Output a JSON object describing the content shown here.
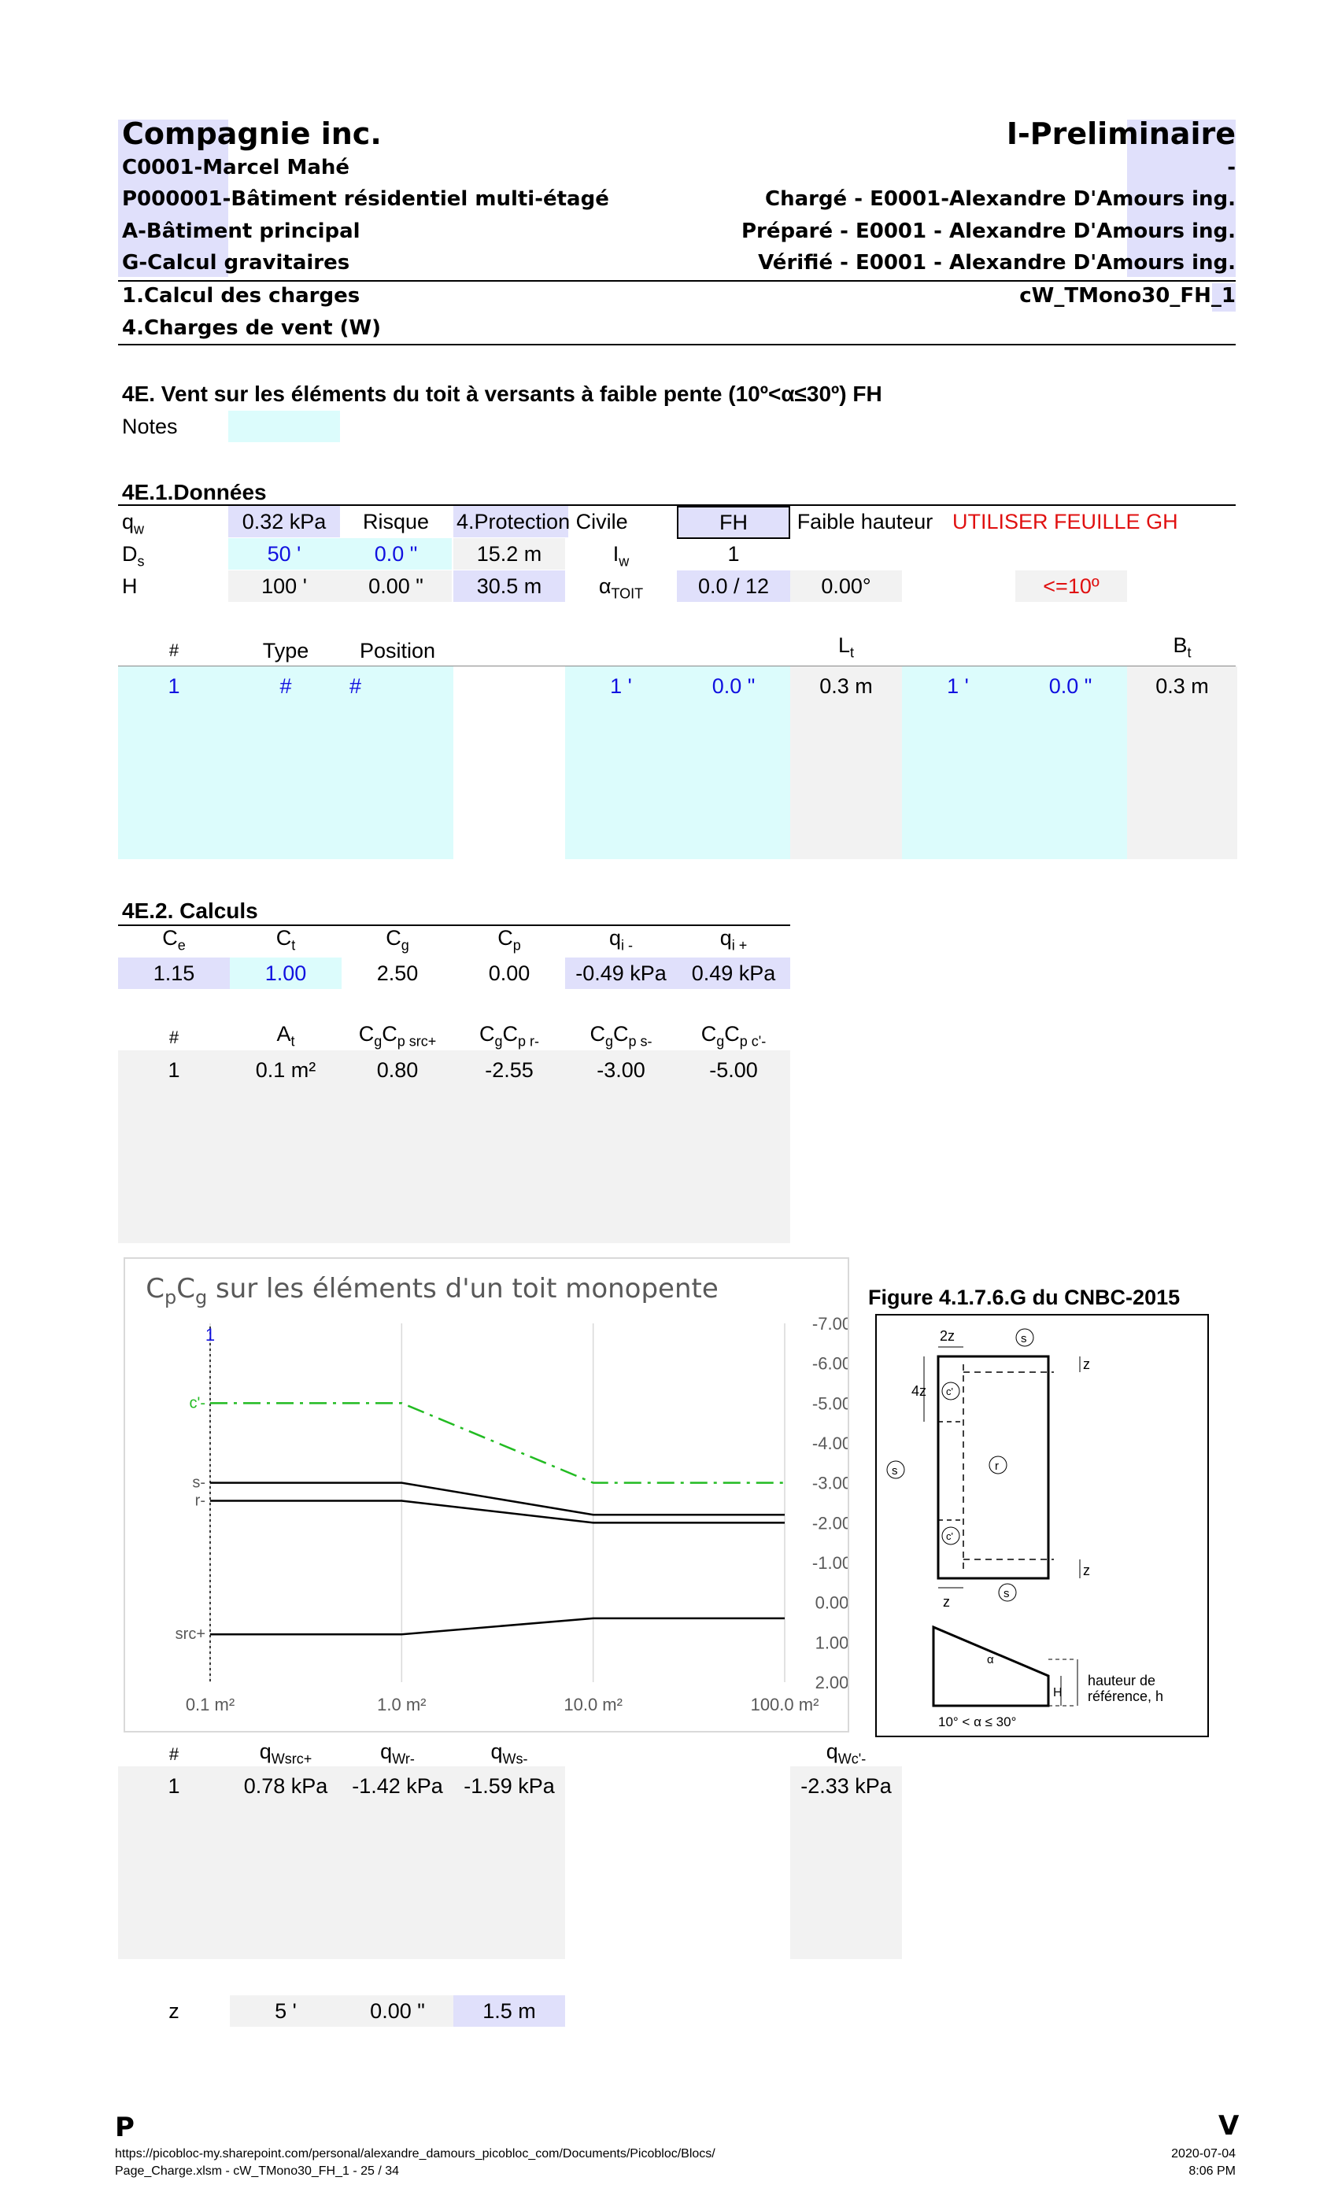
{
  "header": {
    "company": "Compagnie inc.",
    "status": "I-Preliminaire",
    "client": "C0001-Marcel Mahé",
    "dash": "-",
    "project": "P000001-Bâtiment résidentiel multi-étagé",
    "charge": "Chargé - E0001-Alexandre D'Amours ing.",
    "building": "A-Bâtiment principal",
    "prepare": "Préparé - E0001 - Alexandre D'Amours ing.",
    "calc": "G-Calcul gravitaires",
    "verifie": "Vérifié - E0001 - Alexandre D'Amours ing.",
    "section1": "1.Calcul des charges",
    "sheet": "cW_TMono30_FH_1",
    "section4": "4.Charges de vent (W)"
  },
  "title": "4E. Vent sur les éléments du toit à versants à faible pente (10º<α≤30º) FH",
  "notes_label": "Notes",
  "donnees": {
    "heading": "4E.1.Données",
    "qw": "0.32 kPa",
    "risque": "Risque",
    "protection": "4.Protection Civile",
    "fh": "FH",
    "faible": "Faible hauteur",
    "utiliser": "UTILISER FEUILLE GH",
    "ds_ft": "50 '",
    "ds_in": "0.0 \"",
    "ds_m": "15.2 m",
    "iw": "1",
    "h_ft": "100 '",
    "h_in": "0.00 \"",
    "h_m": "30.5 m",
    "pente": "0.0 / 12",
    "angle": "0.00°",
    "cond": "<=10º"
  },
  "table1": {
    "h_num": "#",
    "h_type": "Type",
    "h_pos": "Position",
    "row": {
      "num": "1",
      "type": "#",
      "pos": "#",
      "lt_ft": "1 '",
      "lt_in": "0.0 \"",
      "lt_m": "0.3 m",
      "bt_ft": "1 '",
      "bt_in": "0.0 \"",
      "bt_m": "0.3 m"
    }
  },
  "calculs": {
    "heading": "4E.2. Calculs",
    "ce": "1.15",
    "ct": "1.00",
    "cg": "2.50",
    "cp": "0.00",
    "qi_minus": "-0.49 kPa",
    "qi_plus": "0.49 kPa"
  },
  "table2": {
    "h_num": "#",
    "row": {
      "num": "1",
      "at": "0.1 m²",
      "src": "0.80",
      "r": "-2.55",
      "s": "-3.00",
      "c": "-5.00"
    }
  },
  "chart": {
    "title_sub_p": "p",
    "title_sub_g": "g",
    "title_rest": " sur les éléments d'un toit monopente",
    "marker": "1",
    "labels": {
      "c": "c'-",
      "s": "s-",
      "r": "r-",
      "src": "src+"
    }
  },
  "chart_data": {
    "type": "line",
    "title": "CpCg sur les éléments d'un toit monopente",
    "x_scale": "log",
    "x_ticks": [
      "0.1 m²",
      "1.0 m²",
      "10.0 m²",
      "100.0 m²"
    ],
    "y_ticks": [
      "-7.00",
      "-6.00",
      "-5.00",
      "-4.00",
      "-3.00",
      "-2.00",
      "-1.00",
      "0.00",
      "1.00",
      "2.00"
    ],
    "ylim": [
      -7,
      2
    ],
    "y_inverted": true,
    "x": [
      0.1,
      1,
      10,
      100
    ],
    "series": [
      {
        "name": "c'-",
        "values": [
          -5.0,
          -5.0,
          -3.0,
          -3.0
        ],
        "color": "#22bb22",
        "dash": "dashdot"
      },
      {
        "name": "s-",
        "values": [
          -3.0,
          -3.0,
          -2.2,
          -2.2
        ],
        "color": "#000000"
      },
      {
        "name": "r-",
        "values": [
          -2.55,
          -2.55,
          -2.0,
          -2.0
        ],
        "color": "#000000"
      },
      {
        "name": "src+",
        "values": [
          0.8,
          0.8,
          0.4,
          0.4
        ],
        "color": "#000000"
      }
    ],
    "grid": true
  },
  "figure": {
    "title": "Figure 4.1.7.6.G du CNBC-2015",
    "l2z": "2z",
    "l4z": "4z",
    "z": "z",
    "s": "s",
    "c": "c'",
    "r": "r",
    "alpha": "α",
    "H": "H",
    "ref1": "hauteur de",
    "ref2": "référence, h",
    "range": "10° < α ≤ 30°"
  },
  "table3": {
    "h_num": "#",
    "row": {
      "num": "1",
      "src": "0.78 kPa",
      "r": "-1.42 kPa",
      "s": "-1.59 kPa",
      "c": "-2.33 kPa"
    }
  },
  "zrow": {
    "label": "z",
    "ft": "5 '",
    "in": "0.00 \"",
    "m": "1.5 m"
  },
  "footer": {
    "p": "P",
    "v": "V",
    "url": "https://picobloc-my.sharepoint.com/personal/alexandre_damours_picobloc_com/Documents/Picobloc/Blocs/",
    "file": "Page_Charge.xlsm - cW_TMono30_FH_1 - 25 / 34",
    "date": "2020-07-04",
    "time": "8:06 PM"
  }
}
